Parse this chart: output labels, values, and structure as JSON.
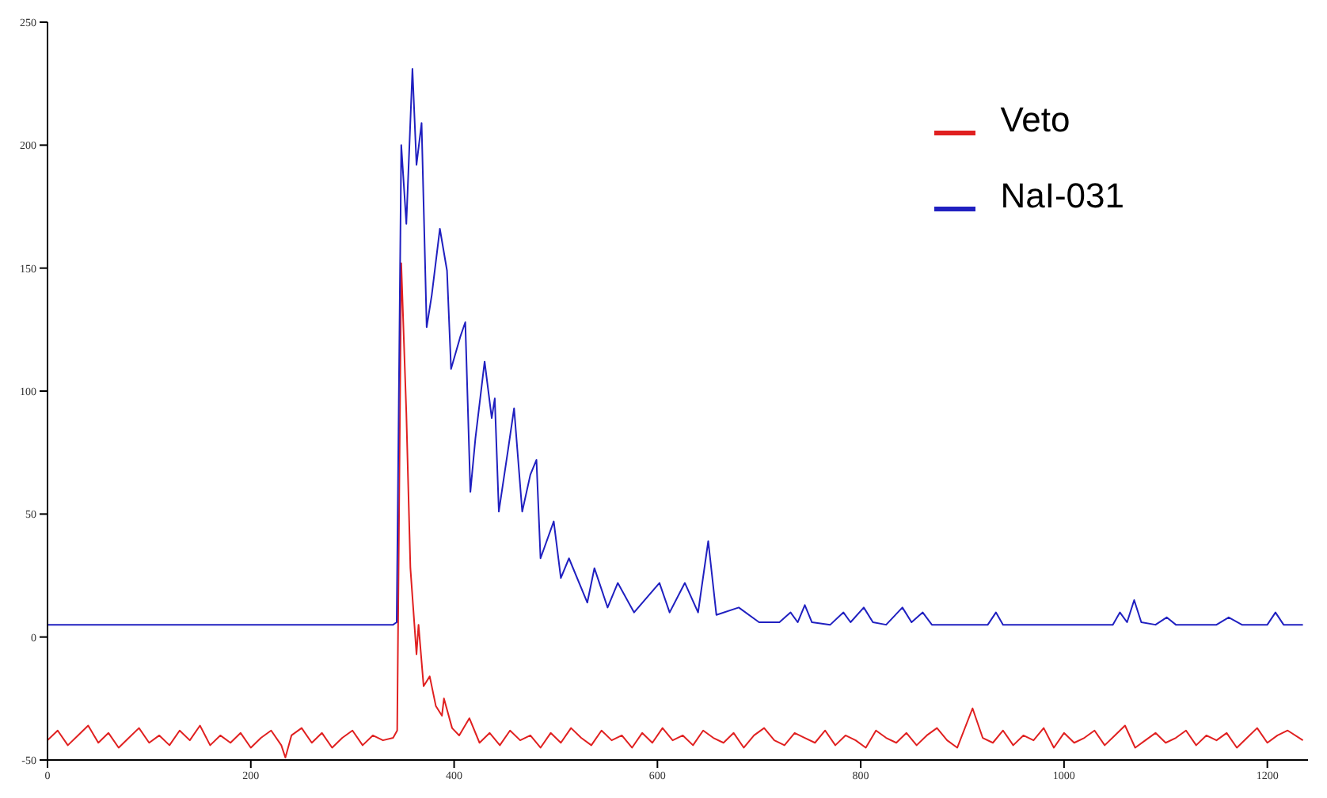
{
  "chart_data": {
    "type": "line",
    "xlim": [
      0,
      1240
    ],
    "xticks": [
      0,
      200,
      400,
      600,
      800,
      1000,
      1200
    ],
    "ylim": [
      -50,
      250
    ],
    "yticks": [
      -50,
      0,
      50,
      100,
      150,
      200,
      250
    ],
    "legend": "top right",
    "marker": "none",
    "line_style": "solid",
    "series": [
      {
        "name": "Veto",
        "color": "#e02020",
        "x": [
          0,
          10,
          20,
          30,
          40,
          50,
          60,
          70,
          80,
          90,
          100,
          110,
          120,
          130,
          140,
          150,
          160,
          170,
          180,
          190,
          200,
          210,
          220,
          230,
          234,
          240,
          250,
          260,
          270,
          280,
          290,
          300,
          310,
          320,
          330,
          340,
          344,
          348,
          353,
          357,
          363,
          365,
          370,
          376,
          382,
          388,
          390,
          398,
          405,
          415,
          425,
          435,
          445,
          455,
          465,
          475,
          485,
          495,
          505,
          515,
          525,
          535,
          545,
          555,
          565,
          575,
          585,
          595,
          605,
          615,
          625,
          635,
          645,
          655,
          665,
          675,
          685,
          695,
          705,
          715,
          725,
          735,
          745,
          755,
          765,
          775,
          785,
          795,
          805,
          815,
          825,
          835,
          845,
          855,
          865,
          875,
          885,
          895,
          910,
          920,
          930,
          940,
          950,
          960,
          970,
          980,
          990,
          1000,
          1010,
          1020,
          1030,
          1040,
          1050,
          1060,
          1070,
          1080,
          1090,
          1100,
          1110,
          1120,
          1130,
          1140,
          1150,
          1160,
          1170,
          1180,
          1190,
          1200,
          1210,
          1220,
          1235
        ],
        "values": [
          -42,
          -38,
          -44,
          -40,
          -36,
          -43,
          -39,
          -45,
          -41,
          -37,
          -43,
          -40,
          -44,
          -38,
          -42,
          -36,
          -44,
          -40,
          -43,
          -39,
          -45,
          -41,
          -38,
          -44,
          -49,
          -40,
          -37,
          -43,
          -39,
          -45,
          -41,
          -38,
          -44,
          -40,
          -42,
          -41,
          -38,
          152,
          91,
          28,
          -7,
          5,
          -20,
          -16,
          -28,
          -32,
          -25,
          -37,
          -40,
          -33,
          -43,
          -39,
          -44,
          -38,
          -42,
          -40,
          -45,
          -39,
          -43,
          -37,
          -41,
          -44,
          -38,
          -42,
          -40,
          -45,
          -39,
          -43,
          -37,
          -42,
          -40,
          -44,
          -38,
          -41,
          -43,
          -39,
          -45,
          -40,
          -37,
          -42,
          -44,
          -39,
          -41,
          -43,
          -38,
          -44,
          -40,
          -42,
          -45,
          -38,
          -41,
          -43,
          -39,
          -44,
          -40,
          -37,
          -42,
          -45,
          -29,
          -41,
          -43,
          -38,
          -44,
          -40,
          -42,
          -37,
          -45,
          -39,
          -43,
          -41,
          -38,
          -44,
          -40,
          -36,
          -45,
          -42,
          -39,
          -43,
          -41,
          -38,
          -44,
          -40,
          -42,
          -39,
          -45,
          -41,
          -37,
          -43,
          -40,
          -38,
          -42
        ]
      },
      {
        "name": "NaI-031",
        "color": "#2020c0",
        "x": [
          0,
          100,
          200,
          300,
          340,
          343.5,
          348,
          353,
          359,
          363,
          368,
          373,
          378,
          386,
          393,
          397,
          406,
          411,
          416,
          421,
          430,
          437,
          440,
          444,
          453,
          459,
          467,
          475,
          481,
          485,
          498,
          505,
          513,
          531,
          538,
          551,
          561,
          577,
          602,
          612,
          627,
          640,
          650,
          658,
          680,
          700,
          720,
          731,
          738,
          745,
          752,
          770,
          783,
          790,
          803,
          812,
          825,
          841,
          850,
          861,
          870,
          900,
          925,
          933,
          940,
          1000,
          1048,
          1055,
          1062,
          1069,
          1076,
          1090,
          1101,
          1110,
          1150,
          1162,
          1175,
          1200,
          1208,
          1216,
          1235
        ],
        "values": [
          5,
          5,
          5,
          5,
          5,
          6,
          200,
          168,
          231,
          192,
          209,
          126,
          139,
          166,
          149,
          109,
          122,
          128,
          59,
          81,
          112,
          89,
          97,
          51,
          76,
          93,
          51,
          66,
          72,
          32,
          47,
          24,
          32,
          14,
          28,
          12,
          22,
          10,
          22,
          10,
          22,
          10,
          39,
          9,
          12,
          6,
          6,
          10,
          6,
          13,
          6,
          5,
          10,
          6,
          12,
          6,
          5,
          12,
          6,
          10,
          5,
          5,
          5,
          10,
          5,
          5,
          5,
          10,
          6,
          15,
          6,
          5,
          8,
          5,
          5,
          8,
          5,
          5,
          10,
          5,
          5
        ]
      }
    ]
  }
}
